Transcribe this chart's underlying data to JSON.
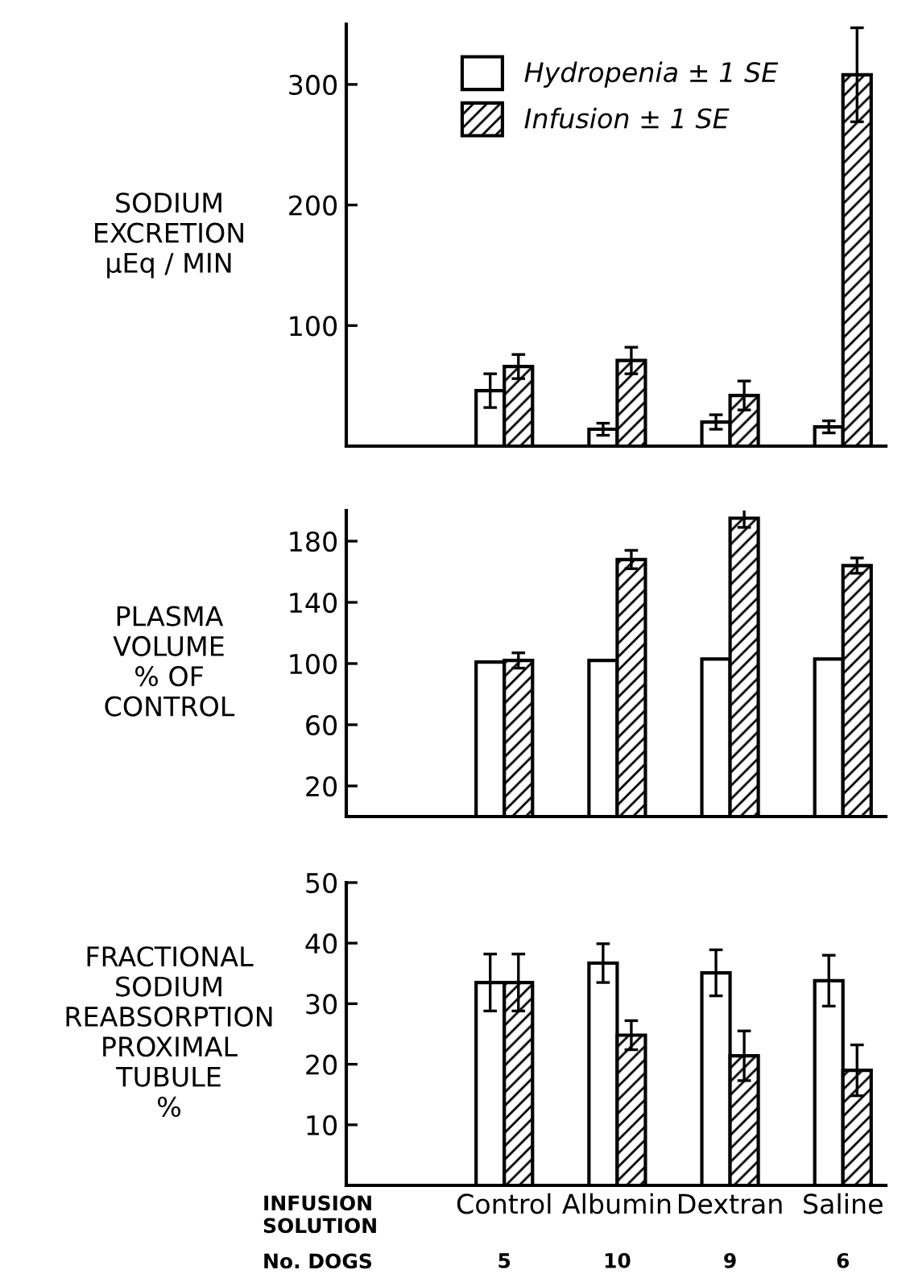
{
  "chart_data": [
    {
      "type": "bar",
      "ylabel": "SODIUM\nEXCRETION\nμEq / MIN",
      "categories": [
        null,
        null,
        null,
        null
      ],
      "ylim": [
        0,
        350
      ],
      "yticks": [
        100,
        200,
        300
      ],
      "tick_labels": "y",
      "legend": "top left",
      "grid": false,
      "series": [
        {
          "name": "Hydropenia ± 1 SE",
          "color": "#ffffff",
          "values": [
            46,
            14,
            20,
            16
          ],
          "errors": [
            14,
            5,
            6,
            5
          ]
        },
        {
          "name": "Infusion ± 1 SE",
          "color": "#000000",
          "values": [
            66,
            71,
            42,
            308
          ],
          "errors": [
            10,
            11,
            12,
            39
          ]
        }
      ]
    },
    {
      "type": "bar",
      "ylabel": "PLASMA\nVOLUME\n% OF\nCONTROL",
      "categories": [
        null,
        null,
        null,
        null
      ],
      "ylim": [
        0,
        200
      ],
      "yticks": [
        20,
        60,
        100,
        140,
        180
      ],
      "tick_labels": "y",
      "grid": false,
      "series": [
        {
          "color": "#ffffff",
          "values": [
            101,
            102,
            103,
            103
          ]
        },
        {
          "color": "#000000",
          "values": [
            102,
            168,
            195,
            164
          ],
          "errors": [
            5,
            6,
            6,
            5
          ]
        }
      ]
    },
    {
      "type": "bar",
      "ylabel": "FRACTIONAL\nSODIUM\nREABSORPTION\nPROXIMAL\nTUBULE\n%",
      "xlabel": "INFUSION\nSOLUTION",
      "categories": [
        "Control",
        "Albumin",
        "Dextran",
        "Saline"
      ],
      "ylim": [
        0,
        50
      ],
      "yticks": [
        10,
        20,
        30,
        40,
        50
      ],
      "grid": false,
      "annotations": [
        "No. DOGS",
        "5",
        "10",
        "9",
        "6"
      ],
      "series": [
        {
          "color": "#ffffff",
          "values": [
            33.5,
            36.7,
            35.1,
            33.8
          ],
          "errors": [
            4.7,
            3.2,
            3.8,
            4.2
          ]
        },
        {
          "color": "#000000",
          "values": [
            33.5,
            24.8,
            21.4,
            19.0
          ],
          "errors": [
            4.7,
            2.4,
            4.1,
            4.2
          ]
        }
      ]
    }
  ]
}
